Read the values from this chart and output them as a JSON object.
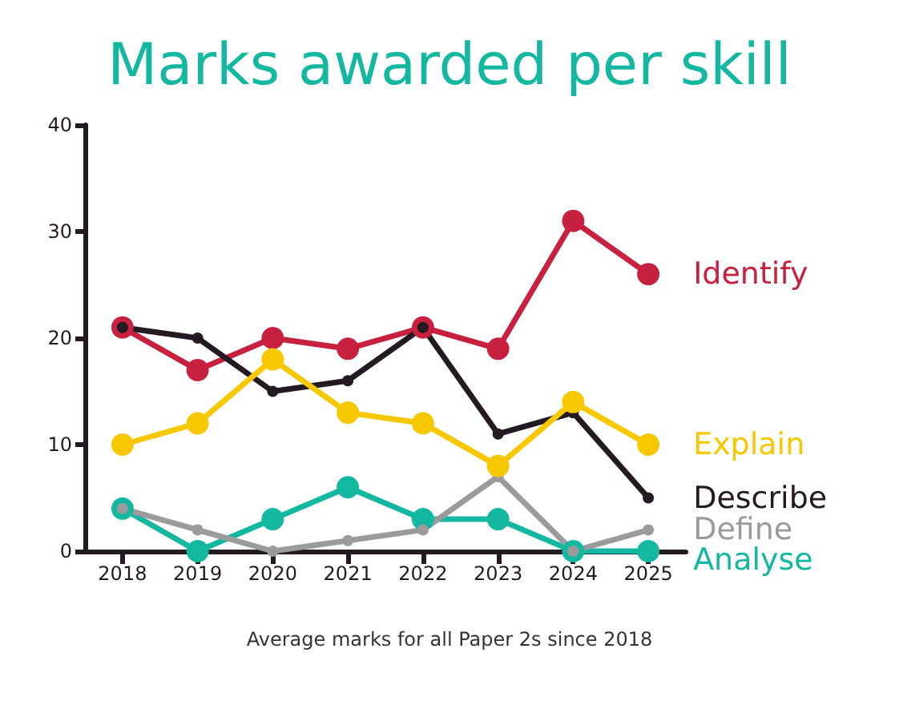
{
  "chart_data": {
    "type": "line",
    "title": "Marks awarded per skill",
    "annotations": [
      "Average marks for all Paper 2s since 2018"
    ],
    "categories": [
      "2018",
      "2019",
      "2020",
      "2021",
      "2022",
      "2023",
      "2024",
      "2025"
    ],
    "series": [
      {
        "name": "Identify",
        "color": "#c8203f",
        "values": [
          21,
          17,
          20,
          19,
          21,
          19,
          31,
          26
        ]
      },
      {
        "name": "Describe",
        "color": "#231a22",
        "values": [
          21,
          20,
          15,
          16,
          21,
          11,
          13,
          5
        ]
      },
      {
        "name": "Analyse",
        "color": "#14b8a0",
        "values": [
          4,
          0,
          3,
          6,
          3,
          3,
          0,
          0
        ]
      },
      {
        "name": "Define",
        "color": "#9b9b9b",
        "values": [
          4,
          2,
          0,
          1,
          2,
          7,
          0,
          2
        ]
      },
      {
        "name": "Explain",
        "color": "#f7c800",
        "values": [
          10,
          12,
          18,
          13,
          12,
          8,
          14,
          10
        ]
      }
    ],
    "ylim": [
      0,
      40
    ],
    "yticks": [
      0,
      10,
      20,
      30,
      40
    ],
    "grid": false,
    "legend": false,
    "marker": "circle",
    "line_style": "solid"
  }
}
